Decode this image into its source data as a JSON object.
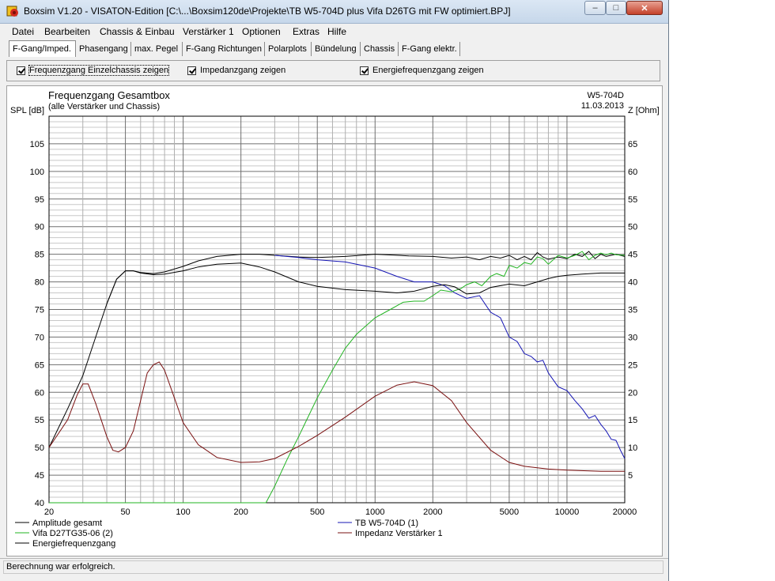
{
  "window": {
    "title": "Boxsim V1.20 - VISATON-Edition [C:\\...\\Boxsim120de\\Projekte\\TB W5-704D plus Vifa D26TG mit FW optimiert.BPJ]",
    "minimize_glyph": "‒",
    "maximize_glyph": "□",
    "close_glyph": "✕"
  },
  "menu": [
    "Datei",
    "Bearbeiten",
    "Chassis & Einbau",
    "Verstärker 1",
    "Optionen",
    "Extras",
    "Hilfe"
  ],
  "tabs": [
    "F-Gang/Imped.",
    "Phasengang",
    "max. Pegel",
    "F-Gang Richtungen",
    "Polarplots",
    "Bündelung",
    "Chassis",
    "F-Gang elektr."
  ],
  "active_tab": "F-Gang/Imped.",
  "checkboxes": [
    {
      "label": "Frequenzgang Einzelchassis zeigen",
      "checked": true
    },
    {
      "label": "Impedanzgang zeigen",
      "checked": true
    },
    {
      "label": "Energiefrequenzgang zeigen",
      "checked": true
    }
  ],
  "status": "Berechnung war erfolgreich.",
  "chart_data": {
    "type": "line",
    "title": "Frequenzgang Gesamtbox",
    "subtitle": "(alle Verstärker und Chassis)",
    "header_right": [
      "W5-704D",
      "11.03.2013"
    ],
    "xlabel": "",
    "ylabel": "SPL [dB]",
    "y2label": "Z [Ohm]",
    "xscale": "log",
    "xlim": [
      20,
      20000
    ],
    "ylim": [
      40,
      110
    ],
    "y2lim": [
      0,
      70
    ],
    "x_ticks": [
      "20",
      "50",
      "100",
      "200",
      "500",
      "1000",
      "2000",
      "5000",
      "10000",
      "20000"
    ],
    "y_ticks": [
      40,
      45,
      50,
      55,
      60,
      65,
      70,
      75,
      80,
      85,
      90,
      95,
      100,
      105
    ],
    "y2_ticks": [
      5,
      10,
      15,
      20,
      25,
      30,
      35,
      40,
      45,
      50,
      55,
      60,
      65
    ],
    "grid": true,
    "legend": "bottom",
    "series": [
      {
        "name": "Amplitude gesamt",
        "axis": "spl",
        "color": "#000000",
        "x": [
          20,
          25,
          30,
          35,
          40,
          45,
          50,
          55,
          60,
          70,
          80,
          100,
          120,
          150,
          200,
          250,
          300,
          400,
          500,
          700,
          1000,
          1500,
          2000,
          2500,
          3000,
          3500,
          4000,
          4500,
          5000,
          5500,
          6000,
          6500,
          7000,
          7500,
          8000,
          9000,
          10000,
          11000,
          12000,
          13000,
          14000,
          15000,
          16000,
          18000,
          20000
        ],
        "y": [
          50,
          57,
          63,
          70,
          76,
          80.5,
          82,
          82,
          81.7,
          81.5,
          81.8,
          82.8,
          83.8,
          84.6,
          85,
          85,
          84.8,
          84.5,
          84.4,
          84.6,
          85,
          84.7,
          84.6,
          84.3,
          84.5,
          84.0,
          84.6,
          84.3,
          84.8,
          84.0,
          84.6,
          84.0,
          85.3,
          84.5,
          84.1,
          84.5,
          84.2,
          85.0,
          84.6,
          85.5,
          84.2,
          85.0,
          84.6,
          85.0,
          84.6
        ]
      },
      {
        "name": "TB W5-704D (1)",
        "axis": "spl",
        "color": "#1414b4",
        "x": [
          300,
          400,
          500,
          700,
          1000,
          1300,
          1600,
          2000,
          2300,
          2600,
          3000,
          3500,
          4000,
          4500,
          5000,
          5500,
          6000,
          6500,
          7000,
          7500,
          8000,
          9000,
          10000,
          11000,
          12000,
          13000,
          14000,
          15000,
          16000,
          17000,
          18000,
          19000,
          20000
        ],
        "y": [
          84.8,
          84.4,
          84.0,
          83.6,
          82.5,
          81.0,
          80.0,
          80.0,
          79.3,
          78.0,
          77.0,
          77.5,
          74.5,
          73.5,
          70.0,
          69.2,
          67.0,
          66.5,
          65.5,
          65.8,
          63.5,
          61.0,
          60.3,
          58.5,
          57.0,
          55.3,
          55.8,
          54.2,
          53.0,
          51.5,
          51.3,
          49.5,
          48.0
        ]
      },
      {
        "name": "Vifa D27TG35-06 (2)",
        "axis": "spl",
        "color": "#22b422",
        "x": [
          20,
          200,
          250,
          270,
          300,
          350,
          400,
          500,
          600,
          700,
          800,
          1000,
          1200,
          1400,
          1600,
          1800,
          2000,
          2200,
          2500,
          2800,
          3000,
          3300,
          3600,
          4000,
          4300,
          4700,
          5000,
          5500,
          6000,
          6500,
          7000,
          7500,
          8000,
          9000,
          10000,
          11000,
          12000,
          13000,
          14000,
          15000,
          16000,
          17000,
          18000,
          20000
        ],
        "y": [
          40,
          40,
          40,
          40,
          43,
          48,
          52,
          59,
          64,
          68,
          70.5,
          73.5,
          75,
          76.3,
          76.5,
          76.5,
          77.5,
          78.5,
          78.2,
          78.8,
          79.5,
          80.0,
          79.3,
          81.0,
          81.5,
          81.0,
          83.0,
          82.5,
          83.5,
          83.2,
          84.5,
          84.2,
          83.2,
          84.8,
          84.3,
          84.8,
          85.5,
          84.0,
          84.8,
          85.2,
          84.9,
          85.2,
          84.9,
          84.8
        ]
      },
      {
        "name": "Energiefrequenzgang",
        "axis": "spl",
        "color": "#000000",
        "x": [
          40,
          45,
          50,
          55,
          60,
          70,
          80,
          100,
          120,
          150,
          200,
          250,
          300,
          400,
          500,
          700,
          1000,
          1300,
          1600,
          2000,
          2300,
          2600,
          3000,
          3500,
          4000,
          5000,
          6000,
          7000,
          8000,
          9000,
          10000,
          12000,
          15000,
          20000
        ],
        "y": [
          76,
          80.5,
          82,
          82,
          81.6,
          81.3,
          81.4,
          82.0,
          82.7,
          83.2,
          83.4,
          82.7,
          81.8,
          80.0,
          79.2,
          78.6,
          78.3,
          78.0,
          78.3,
          79.2,
          79.5,
          79.1,
          77.8,
          78.0,
          79.0,
          79.6,
          79.3,
          80.0,
          80.6,
          81.0,
          81.2,
          81.4,
          81.6,
          81.6
        ]
      },
      {
        "name": "Impedanz Verstärker 1",
        "axis": "ohm",
        "color": "#7a1010",
        "x": [
          20,
          25,
          28,
          30,
          32,
          35,
          40,
          43,
          46,
          50,
          55,
          60,
          65,
          70,
          75,
          80,
          90,
          100,
          120,
          150,
          200,
          250,
          300,
          400,
          500,
          700,
          1000,
          1300,
          1600,
          2000,
          2500,
          3000,
          4000,
          5000,
          6000,
          8000,
          10000,
          15000,
          20000
        ],
        "y": [
          10,
          15,
          19.5,
          21.5,
          21.5,
          18,
          12,
          9.5,
          9.2,
          10,
          13,
          18.5,
          23.5,
          25,
          25.5,
          24,
          19,
          14.5,
          10.5,
          8.2,
          7.3,
          7.4,
          8,
          10.2,
          12.2,
          15.5,
          19.3,
          21.3,
          21.9,
          21.2,
          18.5,
          14.5,
          9.5,
          7.3,
          6.6,
          6.1,
          5.9,
          5.7,
          5.7
        ]
      }
    ]
  }
}
